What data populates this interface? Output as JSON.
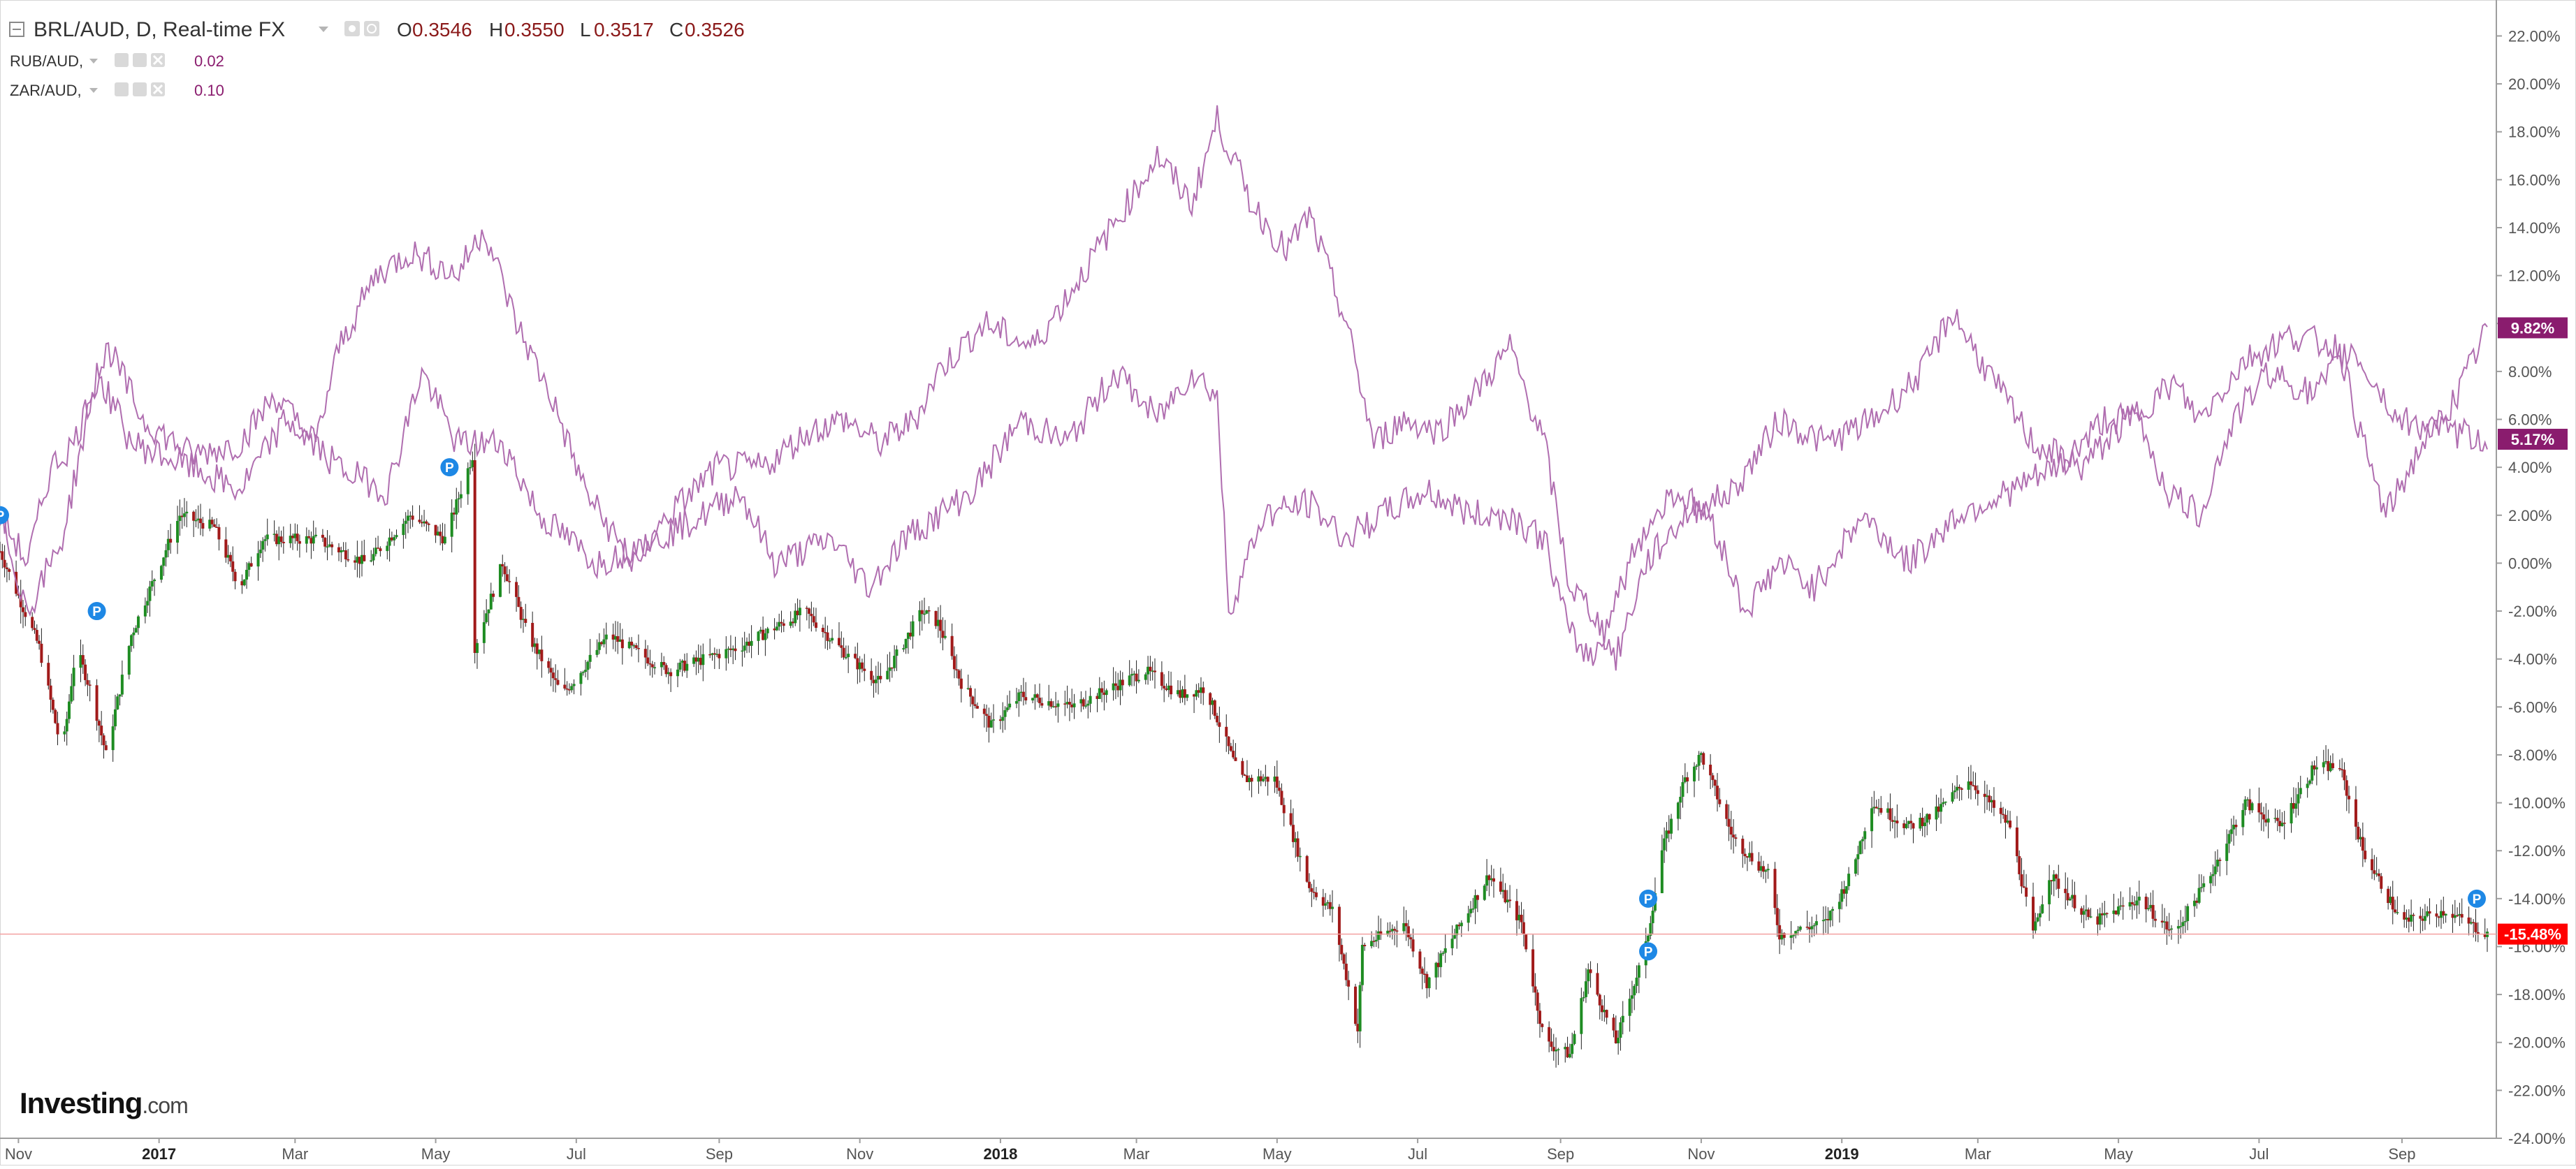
{
  "legend": {
    "main": {
      "symbol": "BRL/AUD, D, Real-time FX",
      "open_label": "O",
      "open": "0.3546",
      "high_label": "H",
      "high": "0.3550",
      "low_label": "L",
      "low": "0.3517",
      "close_label": "C",
      "close": "0.3526"
    },
    "overlays": [
      {
        "symbol": "RUB/AUD,",
        "value": "0.02"
      },
      {
        "symbol": "ZAR/AUD,",
        "value": "0.10"
      }
    ]
  },
  "watermark": {
    "brand": "Investing",
    "suffix": ".com"
  },
  "colors": {
    "up": "#1e8c22",
    "down": "#a11a1a",
    "overlay_line": "#b06eb0",
    "overlay_tag": "#8a1c6e",
    "last_price_tag": "#ff0000",
    "marker": "#1e88e5",
    "grid": "#e6e6e6"
  },
  "markers": {
    "label": "P"
  },
  "price_tags": [
    {
      "series": "RUB/AUD",
      "text": "9.82%"
    },
    {
      "series": "ZAR/AUD",
      "text": "5.17%"
    },
    {
      "series": "BRL/AUD",
      "text": "-15.48%"
    }
  ],
  "chart_data": {
    "type": "candlestick",
    "x_axis": {
      "tick_labels": [
        "Nov",
        "2017",
        "Mar",
        "May",
        "Jul",
        "Sep",
        "Nov",
        "2018",
        "Mar",
        "May",
        "Jul",
        "Sep",
        "Nov",
        "2019",
        "Mar",
        "May",
        "Jul",
        "Sep"
      ],
      "bold_labels": [
        "2017",
        "2018",
        "2019"
      ],
      "range": [
        "2016-10-24",
        "2019-10-08"
      ]
    },
    "y_axis": {
      "unit": "% change",
      "range": [
        -24,
        23.5
      ],
      "tick_labels": [
        "22.00%",
        "20.00%",
        "18.00%",
        "16.00%",
        "14.00%",
        "12.00%",
        "10.00%",
        "8.00%",
        "6.00%",
        "4.00%",
        "2.00%",
        "0.00%",
        "-2.00%",
        "-4.00%",
        "-6.00%",
        "-8.00%",
        "-10.00%",
        "-12.00%",
        "-14.00%",
        "-16.00%",
        "-18.00%",
        "-20.00%",
        "-22.00%",
        "-24.00%"
      ]
    },
    "series": [
      {
        "name": "BRL/AUD",
        "style": "candles",
        "last_value": -15.48,
        "points": [
          [
            "2016-10-24",
            0.5
          ],
          [
            "2016-11-10",
            -3.5
          ],
          [
            "2016-11-20",
            -8.0
          ],
          [
            "2016-11-26",
            -3.5
          ],
          [
            "2016-12-03",
            -5.5
          ],
          [
            "2016-12-09",
            -8.0
          ],
          [
            "2016-12-20",
            -3.0
          ],
          [
            "2017-01-10",
            2.0
          ],
          [
            "2017-01-25",
            1.5
          ],
          [
            "2017-02-05",
            -1.0
          ],
          [
            "2017-02-15",
            1.0
          ],
          [
            "2017-03-10",
            1.0
          ],
          [
            "2017-04-01",
            0.0
          ],
          [
            "2017-04-20",
            2.0
          ],
          [
            "2017-05-05",
            1.0
          ],
          [
            "2017-05-17",
            4.5
          ],
          [
            "2017-05-18",
            -3.5
          ],
          [
            "2017-05-30",
            0.0
          ],
          [
            "2017-06-10",
            -3.0
          ],
          [
            "2017-06-25",
            -5.5
          ],
          [
            "2017-07-15",
            -3.0
          ],
          [
            "2017-08-10",
            -4.5
          ],
          [
            "2017-09-10",
            -3.5
          ],
          [
            "2017-10-08",
            -2.0
          ],
          [
            "2017-10-28",
            -4.0
          ],
          [
            "2017-11-10",
            -5.0
          ],
          [
            "2017-11-28",
            -2.0
          ],
          [
            "2017-12-05",
            -2.5
          ],
          [
            "2017-12-15",
            -5.0
          ],
          [
            "2017-12-28",
            -6.8
          ],
          [
            "2018-01-10",
            -5.5
          ],
          [
            "2018-02-01",
            -6.0
          ],
          [
            "2018-03-05",
            -4.5
          ],
          [
            "2018-03-20",
            -5.5
          ],
          [
            "2018-03-31",
            -5.2
          ],
          [
            "2018-04-15",
            -9.0
          ],
          [
            "2018-04-30",
            -9.0
          ],
          [
            "2018-05-15",
            -13.5
          ],
          [
            "2018-05-25",
            -14.5
          ],
          [
            "2018-06-05",
            -19.5
          ],
          [
            "2018-06-07",
            -16.0
          ],
          [
            "2018-06-25",
            -15.0
          ],
          [
            "2018-07-05",
            -17.5
          ],
          [
            "2018-07-20",
            -15.0
          ],
          [
            "2018-08-01",
            -13.0
          ],
          [
            "2018-08-15",
            -15.0
          ],
          [
            "2018-08-25",
            -20.0
          ],
          [
            "2018-09-05",
            -20.5
          ],
          [
            "2018-09-13",
            -17.0
          ],
          [
            "2018-09-25",
            -20.0
          ],
          [
            "2018-10-08",
            -16.0
          ],
          [
            "2018-10-15",
            -12.0
          ],
          [
            "2018-10-25",
            -9.0
          ],
          [
            "2018-11-01",
            -8.0
          ],
          [
            "2018-11-15",
            -11.5
          ],
          [
            "2018-11-30",
            -13.0
          ],
          [
            "2018-12-05",
            -15.5
          ],
          [
            "2018-12-25",
            -15.0
          ],
          [
            "2019-01-05",
            -13.0
          ],
          [
            "2019-01-14",
            -10.0
          ],
          [
            "2019-01-30",
            -11.0
          ],
          [
            "2019-02-10",
            -10.5
          ],
          [
            "2019-02-25",
            -9.0
          ],
          [
            "2019-03-15",
            -11.0
          ],
          [
            "2019-03-25",
            -15.5
          ],
          [
            "2019-04-01",
            -13.0
          ],
          [
            "2019-04-20",
            -15.0
          ],
          [
            "2019-05-10",
            -14.0
          ],
          [
            "2019-05-25",
            -15.5
          ],
          [
            "2019-06-10",
            -13.0
          ],
          [
            "2019-06-25",
            -10.0
          ],
          [
            "2019-07-10",
            -11.0
          ],
          [
            "2019-07-25",
            -8.5
          ],
          [
            "2019-08-05",
            -8.5
          ],
          [
            "2019-08-15",
            -12.0
          ],
          [
            "2019-09-01",
            -15.0
          ],
          [
            "2019-09-20",
            -14.5
          ],
          [
            "2019-10-08",
            -15.48
          ]
        ]
      },
      {
        "name": "RUB/AUD",
        "style": "line",
        "last_value": 9.82,
        "points": [
          [
            "2016-10-24",
            2.0
          ],
          [
            "2016-11-05",
            0.0
          ],
          [
            "2016-11-15",
            4.0
          ],
          [
            "2016-11-25",
            5.0
          ],
          [
            "2016-12-10",
            9.0
          ],
          [
            "2016-12-25",
            6.0
          ],
          [
            "2017-01-15",
            4.5
          ],
          [
            "2017-02-05",
            5.0
          ],
          [
            "2017-02-20",
            7.0
          ],
          [
            "2017-03-10",
            5.0
          ],
          [
            "2017-03-20",
            9.0
          ],
          [
            "2017-04-05",
            12.0
          ],
          [
            "2017-04-20",
            13.0
          ],
          [
            "2017-05-10",
            12.0
          ],
          [
            "2017-05-22",
            14.0
          ],
          [
            "2017-06-05",
            10.0
          ],
          [
            "2017-06-20",
            7.0
          ],
          [
            "2017-07-05",
            3.0
          ],
          [
            "2017-07-25",
            0.0
          ],
          [
            "2017-08-10",
            2.0
          ],
          [
            "2017-08-31",
            4.0
          ],
          [
            "2017-09-20",
            4.0
          ],
          [
            "2017-10-10",
            5.5
          ],
          [
            "2017-10-25",
            6.0
          ],
          [
            "2017-11-10",
            5.0
          ],
          [
            "2017-11-25",
            6.0
          ],
          [
            "2017-12-05",
            8.0
          ],
          [
            "2017-12-25",
            10.0
          ],
          [
            "2018-01-15",
            9.0
          ],
          [
            "2018-02-05",
            12.0
          ],
          [
            "2018-02-25",
            15.0
          ],
          [
            "2018-03-10",
            17.0
          ],
          [
            "2018-03-25",
            15.0
          ],
          [
            "2018-04-05",
            18.5
          ],
          [
            "2018-04-20",
            15.0
          ],
          [
            "2018-05-05",
            13.0
          ],
          [
            "2018-05-15",
            14.5
          ],
          [
            "2018-05-31",
            10.0
          ],
          [
            "2018-06-12",
            5.0
          ],
          [
            "2018-06-25",
            6.0
          ],
          [
            "2018-07-10",
            5.5
          ],
          [
            "2018-07-25",
            7.0
          ],
          [
            "2018-08-10",
            9.0
          ],
          [
            "2018-08-25",
            5.0
          ],
          [
            "2018-09-05",
            -1.0
          ],
          [
            "2018-09-15",
            -2.0
          ],
          [
            "2018-09-25",
            -4.0
          ],
          [
            "2018-10-08",
            0.0
          ],
          [
            "2018-10-25",
            2.0
          ],
          [
            "2018-11-15",
            3.0
          ],
          [
            "2018-12-05",
            6.0
          ],
          [
            "2018-12-25",
            5.0
          ],
          [
            "2019-01-15",
            6.0
          ],
          [
            "2019-02-05",
            8.0
          ],
          [
            "2019-02-18",
            10.5
          ],
          [
            "2019-03-05",
            8.0
          ],
          [
            "2019-03-25",
            5.0
          ],
          [
            "2019-04-15",
            4.0
          ],
          [
            "2019-05-05",
            6.0
          ],
          [
            "2019-05-25",
            7.5
          ],
          [
            "2019-06-05",
            6.0
          ],
          [
            "2019-06-25",
            8.5
          ],
          [
            "2019-07-15",
            9.5
          ],
          [
            "2019-08-05",
            9.0
          ],
          [
            "2019-08-15",
            5.0
          ],
          [
            "2019-08-25",
            2.0
          ],
          [
            "2019-09-10",
            5.0
          ],
          [
            "2019-09-25",
            7.0
          ],
          [
            "2019-10-08",
            9.82
          ]
        ]
      },
      {
        "name": "ZAR/AUD",
        "style": "line",
        "last_value": 5.17,
        "points": [
          [
            "2016-10-24",
            2.0
          ],
          [
            "2016-11-05",
            -2.0
          ],
          [
            "2016-11-20",
            1.0
          ],
          [
            "2016-12-05",
            8.0
          ],
          [
            "2016-12-20",
            5.0
          ],
          [
            "2017-01-15",
            4.0
          ],
          [
            "2017-02-05",
            3.0
          ],
          [
            "2017-02-25",
            6.0
          ],
          [
            "2017-03-20",
            4.0
          ],
          [
            "2017-04-10",
            3.0
          ],
          [
            "2017-04-25",
            8.0
          ],
          [
            "2017-05-10",
            5.0
          ],
          [
            "2017-05-30",
            5.0
          ],
          [
            "2017-06-15",
            2.0
          ],
          [
            "2017-07-10",
            0.0
          ],
          [
            "2017-08-05",
            1.0
          ],
          [
            "2017-08-25",
            2.0
          ],
          [
            "2017-09-10",
            3.0
          ],
          [
            "2017-09-25",
            0.0
          ],
          [
            "2017-10-20",
            1.0
          ],
          [
            "2017-11-05",
            -1.0
          ],
          [
            "2017-11-20",
            1.0
          ],
          [
            "2017-12-05",
            2.0
          ],
          [
            "2017-12-20",
            3.0
          ],
          [
            "2018-01-10",
            6.0
          ],
          [
            "2018-01-30",
            5.0
          ],
          [
            "2018-02-20",
            8.0
          ],
          [
            "2018-03-10",
            6.0
          ],
          [
            "2018-03-25",
            8.0
          ],
          [
            "2018-04-05",
            7.0
          ],
          [
            "2018-04-10",
            -2.0
          ],
          [
            "2018-04-25",
            2.0
          ],
          [
            "2018-05-15",
            2.5
          ],
          [
            "2018-05-31",
            1.0
          ],
          [
            "2018-06-15",
            2.0
          ],
          [
            "2018-07-05",
            3.0
          ],
          [
            "2018-07-25",
            2.0
          ],
          [
            "2018-08-10",
            2.0
          ],
          [
            "2018-08-25",
            1.0
          ],
          [
            "2018-09-05",
            -3.0
          ],
          [
            "2018-09-15",
            -4.0
          ],
          [
            "2018-10-05",
            1.0
          ],
          [
            "2018-10-20",
            3.0
          ],
          [
            "2018-11-05",
            2.0
          ],
          [
            "2018-11-20",
            -2.0
          ],
          [
            "2018-12-05",
            0.0
          ],
          [
            "2018-12-20",
            -1.0
          ],
          [
            "2019-01-10",
            2.0
          ],
          [
            "2019-01-30",
            0.0
          ],
          [
            "2019-02-20",
            2.0
          ],
          [
            "2019-03-15",
            3.0
          ],
          [
            "2019-04-05",
            4.0
          ],
          [
            "2019-04-25",
            6.0
          ],
          [
            "2019-05-10",
            6.0
          ],
          [
            "2019-05-22",
            3.0
          ],
          [
            "2019-06-05",
            2.0
          ],
          [
            "2019-06-20",
            6.0
          ],
          [
            "2019-07-05",
            8.0
          ],
          [
            "2019-07-25",
            7.0
          ],
          [
            "2019-08-10",
            9.0
          ],
          [
            "2019-08-30",
            6.0
          ],
          [
            "2019-09-20",
            5.5
          ],
          [
            "2019-10-08",
            5.17
          ]
        ]
      }
    ],
    "markers": [
      {
        "series": "BRL/AUD",
        "date": "2016-10-24",
        "y": 2.0
      },
      {
        "series": "BRL/AUD",
        "date": "2016-12-05",
        "y": -2.0
      },
      {
        "series": "BRL/AUD",
        "date": "2017-05-07",
        "y": 4.0
      },
      {
        "series": "BRL/AUD",
        "date": "2018-10-09",
        "y": -14.0
      },
      {
        "series": "BRL/AUD",
        "date": "2018-10-09",
        "y": -16.2
      },
      {
        "series": "BRL/AUD",
        "date": "2019-10-04",
        "y": -14.0
      }
    ],
    "last_price_line": -15.48,
    "grid": false
  }
}
